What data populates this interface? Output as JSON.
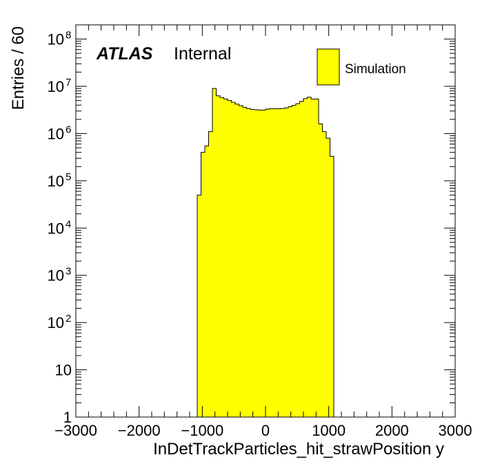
{
  "chart_data": {
    "type": "bar",
    "histogram": true,
    "xlabel": "InDetTrackParticles_hit_strawPosition y",
    "ylabel": "Entries / 60",
    "xlim": [
      -3000,
      3000
    ],
    "ylim": [
      1,
      200000000
    ],
    "yscale": "log",
    "bin_width": 60,
    "x_ticks": [
      -3000,
      -2000,
      -1000,
      0,
      1000,
      2000,
      3000
    ],
    "x_tick_labels": [
      "−3000",
      "−2000",
      "−1000",
      "0",
      "1000",
      "2000",
      "3000"
    ],
    "y_ticks": [
      {
        "value": 1,
        "base": "1",
        "exp": ""
      },
      {
        "value": 10,
        "base": "10",
        "exp": ""
      },
      {
        "value": 100,
        "base": "10",
        "exp": "2"
      },
      {
        "value": 1000,
        "base": "10",
        "exp": "3"
      },
      {
        "value": 10000,
        "base": "10",
        "exp": "4"
      },
      {
        "value": 100000,
        "base": "10",
        "exp": "5"
      },
      {
        "value": 1000000,
        "base": "10",
        "exp": "6"
      },
      {
        "value": 10000000,
        "base": "10",
        "exp": "7"
      },
      {
        "value": 100000000,
        "base": "10",
        "exp": "8"
      }
    ],
    "series": [
      {
        "name": "Simulation",
        "color": "#ffff00",
        "bins": [
          {
            "x": -1080,
            "y": 50000
          },
          {
            "x": -1020,
            "y": 400000
          },
          {
            "x": -960,
            "y": 550000
          },
          {
            "x": -900,
            "y": 1100000
          },
          {
            "x": -840,
            "y": 9000000
          },
          {
            "x": -780,
            "y": 6300000
          },
          {
            "x": -720,
            "y": 5800000
          },
          {
            "x": -660,
            "y": 5400000
          },
          {
            "x": -600,
            "y": 5000000
          },
          {
            "x": -540,
            "y": 4600000
          },
          {
            "x": -480,
            "y": 4200000
          },
          {
            "x": -420,
            "y": 3900000
          },
          {
            "x": -360,
            "y": 3600000
          },
          {
            "x": -300,
            "y": 3400000
          },
          {
            "x": -240,
            "y": 3250000
          },
          {
            "x": -180,
            "y": 3200000
          },
          {
            "x": -120,
            "y": 3150000
          },
          {
            "x": -60,
            "y": 3150000
          },
          {
            "x": 0,
            "y": 3300000
          },
          {
            "x": 60,
            "y": 3350000
          },
          {
            "x": 120,
            "y": 3350000
          },
          {
            "x": 180,
            "y": 3350000
          },
          {
            "x": 240,
            "y": 3400000
          },
          {
            "x": 300,
            "y": 3500000
          },
          {
            "x": 360,
            "y": 3700000
          },
          {
            "x": 420,
            "y": 3950000
          },
          {
            "x": 480,
            "y": 4300000
          },
          {
            "x": 540,
            "y": 4800000
          },
          {
            "x": 600,
            "y": 5500000
          },
          {
            "x": 660,
            "y": 5900000
          },
          {
            "x": 720,
            "y": 5400000
          },
          {
            "x": 780,
            "y": 5400000
          },
          {
            "x": 840,
            "y": 1600000
          },
          {
            "x": 900,
            "y": 1100000
          },
          {
            "x": 960,
            "y": 800000
          },
          {
            "x": 1020,
            "y": 330000
          }
        ]
      }
    ],
    "legend": {
      "position": "top-right",
      "entries": [
        "Simulation"
      ]
    },
    "annotations": {
      "atlas": "ATLAS",
      "label": "Internal"
    },
    "grid": false
  }
}
